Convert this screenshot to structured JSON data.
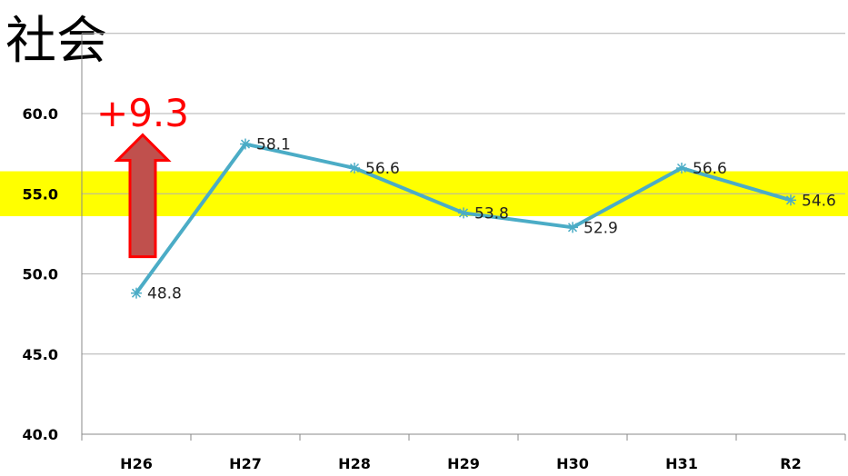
{
  "title": "社会",
  "colors": {
    "line": "#4BACC6",
    "band": "#FFFF00",
    "arrow_fill": "#C0504D",
    "arrow_stroke": "#FF0000",
    "annotation": "#FF0000",
    "grid": "#B0B0B0"
  },
  "chart_data": {
    "type": "line",
    "title": "社会",
    "categories": [
      "H26",
      "H27",
      "H28",
      "H29",
      "H30",
      "H31",
      "R2"
    ],
    "series": [
      {
        "values": [
          48.8,
          58.1,
          56.6,
          53.8,
          52.9,
          56.6,
          54.6
        ],
        "labels": [
          "48.8",
          "58.1",
          "56.6",
          "53.8",
          "52.9",
          "56.6",
          "54.6"
        ]
      }
    ],
    "ylim": [
      40,
      60
    ],
    "yticks": [
      40,
      45,
      50,
      55,
      60
    ],
    "ytick_labels": [
      "40.0",
      "45.0",
      "50.0",
      "55.0",
      "60.0"
    ],
    "grid": true,
    "highlight_band": [
      53.6,
      56.4
    ],
    "annotation": {
      "text": "+9.3",
      "arrow": "up",
      "from": 48.8,
      "to": 58.1
    }
  }
}
